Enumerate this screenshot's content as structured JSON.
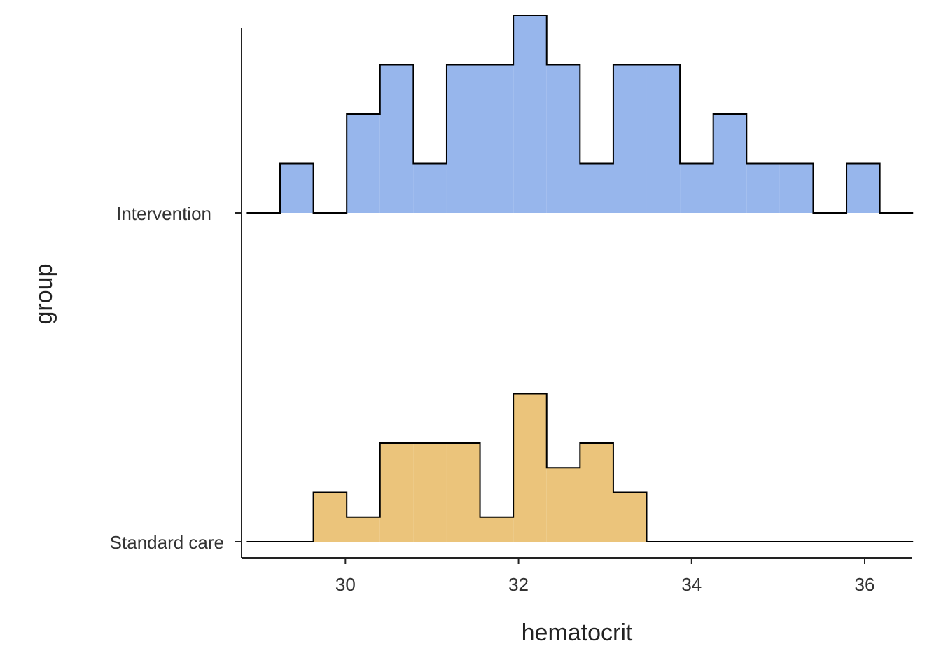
{
  "chart_data": {
    "type": "ridgeline-histogram",
    "xlabel": "hematocrit",
    "ylabel": "group",
    "xlim": [
      28.8,
      36.55
    ],
    "xticks": [
      30,
      32,
      34,
      36
    ],
    "groups": [
      "Standard care",
      "Intervention"
    ],
    "bins": {
      "start": 28.86,
      "width": 0.385,
      "count": 20
    },
    "series": [
      {
        "name": "Intervention",
        "color": "#97B6EC",
        "counts": [
          0,
          1,
          0,
          2,
          3,
          1,
          3,
          3,
          4,
          3,
          1,
          3,
          3,
          1,
          2,
          1,
          1,
          0,
          1,
          0
        ]
      },
      {
        "name": "Standard care",
        "color": "#EBC47B",
        "counts": [
          0,
          0,
          1,
          0.5,
          2,
          2,
          2,
          0.5,
          3,
          1.5,
          2,
          1,
          0,
          0,
          0,
          0,
          0,
          0,
          0,
          0
        ]
      }
    ],
    "grid": false,
    "legend": "none"
  }
}
